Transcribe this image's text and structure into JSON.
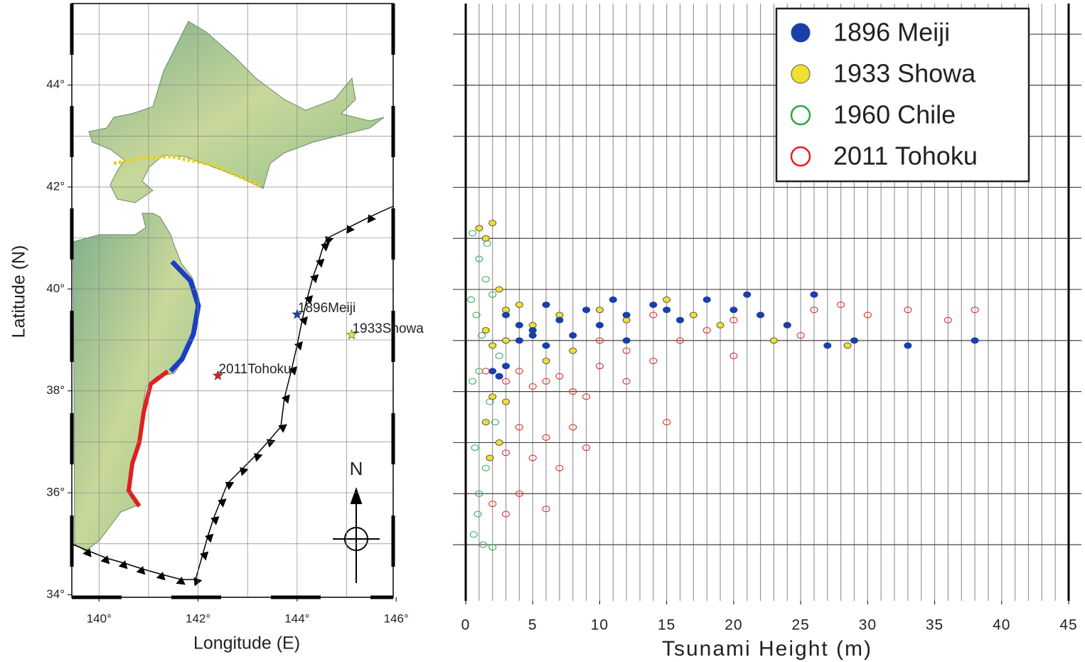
{
  "chart_data": [
    {
      "type": "map",
      "xlabel": "Longitude (E)",
      "ylabel": "Latitude (N)",
      "xlim": [
        139.45,
        145.94
      ],
      "ylim": [
        33.95,
        45.6
      ],
      "xticks": [
        {
          "value": 140,
          "label": "140°"
        },
        {
          "value": 142,
          "label": "142°"
        },
        {
          "value": 144,
          "label": "144°"
        },
        {
          "value": 146,
          "label": "146°"
        }
      ],
      "yticks": [
        {
          "value": 34,
          "label": "34°"
        },
        {
          "value": 36,
          "label": "36°"
        },
        {
          "value": 38,
          "label": "38°"
        },
        {
          "value": 40,
          "label": "40°"
        },
        {
          "value": 42,
          "label": "42°"
        },
        {
          "value": 44,
          "label": "44°"
        }
      ],
      "xgrid": [
        140,
        141,
        142,
        143,
        144,
        145
      ],
      "ygrid": [
        35,
        36,
        37,
        38,
        39,
        40,
        41,
        42,
        43,
        44,
        45
      ],
      "points": [
        {
          "name": "1896Meiji",
          "x": 144.0,
          "y": 39.5,
          "color": "#1a3fc0"
        },
        {
          "name": "1933Showa",
          "x": 145.1,
          "y": 39.1,
          "color": "#f0e030"
        },
        {
          "name": "2011Tohoku",
          "x": 142.4,
          "y": 38.3,
          "color": "#d42020"
        }
      ],
      "north_label": "N"
    },
    {
      "type": "scatter",
      "xlabel": "Tsunami Height (m)",
      "xlim": [
        0,
        45
      ],
      "ylim": [
        33.9,
        45.6
      ],
      "xticks": [
        0,
        5,
        10,
        15,
        20,
        25,
        30,
        35,
        40,
        45
      ],
      "xgrid": [
        1,
        2,
        3,
        4,
        5,
        6,
        7,
        8,
        9,
        10,
        11,
        12,
        13,
        14,
        15,
        16,
        17,
        18,
        19,
        20,
        21,
        22,
        23,
        24,
        25,
        26,
        27,
        28,
        29,
        30,
        31,
        32,
        33,
        34,
        35,
        36,
        37,
        38,
        39,
        40,
        41,
        42,
        43,
        44
      ],
      "ygrid": [
        35,
        36,
        37,
        38,
        39,
        40,
        41,
        42,
        43,
        44,
        45
      ],
      "legend": "upper right",
      "series": [
        {
          "name": "1896 Meiji",
          "color": "#1a3fa8",
          "marker": "filled",
          "x": [
            2,
            3,
            4,
            5,
            6,
            7,
            8,
            9,
            10,
            11,
            12,
            14,
            16,
            18,
            20,
            21,
            22,
            24,
            26,
            27,
            29,
            33,
            38,
            3,
            5,
            2.5,
            4,
            6,
            12,
            15
          ],
          "y": [
            38.4,
            38.5,
            39.0,
            39.2,
            38.9,
            39.4,
            39.1,
            39.6,
            39.3,
            39.8,
            39.5,
            39.7,
            39.4,
            39.8,
            39.6,
            39.9,
            39.5,
            39.3,
            39.9,
            38.9,
            39.0,
            38.9,
            39.0,
            39.5,
            39.1,
            38.3,
            39.3,
            39.7,
            39.0,
            39.6
          ]
        },
        {
          "name": "1933 Showa",
          "color": "#f0e030",
          "marker": "filled",
          "x": [
            1,
            1.5,
            2,
            2.5,
            3,
            1.5,
            2,
            3,
            4,
            5,
            6,
            7,
            8,
            10,
            12,
            15,
            17,
            19,
            23,
            28.5,
            1.5,
            2,
            3,
            2.5,
            1.8
          ],
          "y": [
            41.2,
            41.0,
            41.3,
            40.0,
            39.6,
            39.2,
            38.9,
            39.0,
            39.7,
            39.3,
            38.6,
            39.5,
            38.8,
            39.6,
            39.4,
            39.8,
            39.5,
            39.3,
            39.0,
            38.9,
            37.4,
            37.9,
            37.8,
            37.0,
            36.7
          ]
        },
        {
          "name": "1960 Chile",
          "color": "#2aa84a",
          "marker": "open",
          "x": [
            0.5,
            1,
            1.5,
            2,
            0.8,
            1.2,
            2.5,
            1,
            0.5,
            1.8,
            2.2,
            0.7,
            1.5,
            1,
            0.9,
            0.6,
            2,
            1.3,
            0.4,
            1.6
          ],
          "y": [
            41.1,
            40.6,
            40.2,
            39.9,
            39.5,
            39.1,
            38.7,
            38.4,
            38.2,
            37.8,
            37.4,
            36.9,
            36.5,
            36.0,
            35.6,
            35.2,
            34.95,
            35.0,
            39.8,
            40.9
          ]
        },
        {
          "name": "2011 Tohoku",
          "color": "#e02020",
          "marker": "open",
          "x": [
            1.5,
            2.5,
            3,
            4,
            5,
            6,
            7,
            8,
            9,
            10,
            12,
            14,
            16,
            18,
            20,
            22,
            24,
            26,
            28,
            30,
            33,
            36,
            38,
            4,
            6,
            8,
            3,
            5,
            7,
            9,
            2,
            3,
            4,
            6,
            15,
            12,
            10,
            14,
            20,
            25
          ],
          "y": [
            38.4,
            38.3,
            38.2,
            38.4,
            38.1,
            38.2,
            38.3,
            38.0,
            37.9,
            38.5,
            38.8,
            38.6,
            39.0,
            39.2,
            39.4,
            39.5,
            39.3,
            39.6,
            39.7,
            39.5,
            39.6,
            39.4,
            39.6,
            37.3,
            37.1,
            37.3,
            36.8,
            36.7,
            36.5,
            36.9,
            35.8,
            35.6,
            36.0,
            35.7,
            37.4,
            38.2,
            39.0,
            39.5,
            38.7,
            39.1
          ]
        }
      ]
    }
  ]
}
